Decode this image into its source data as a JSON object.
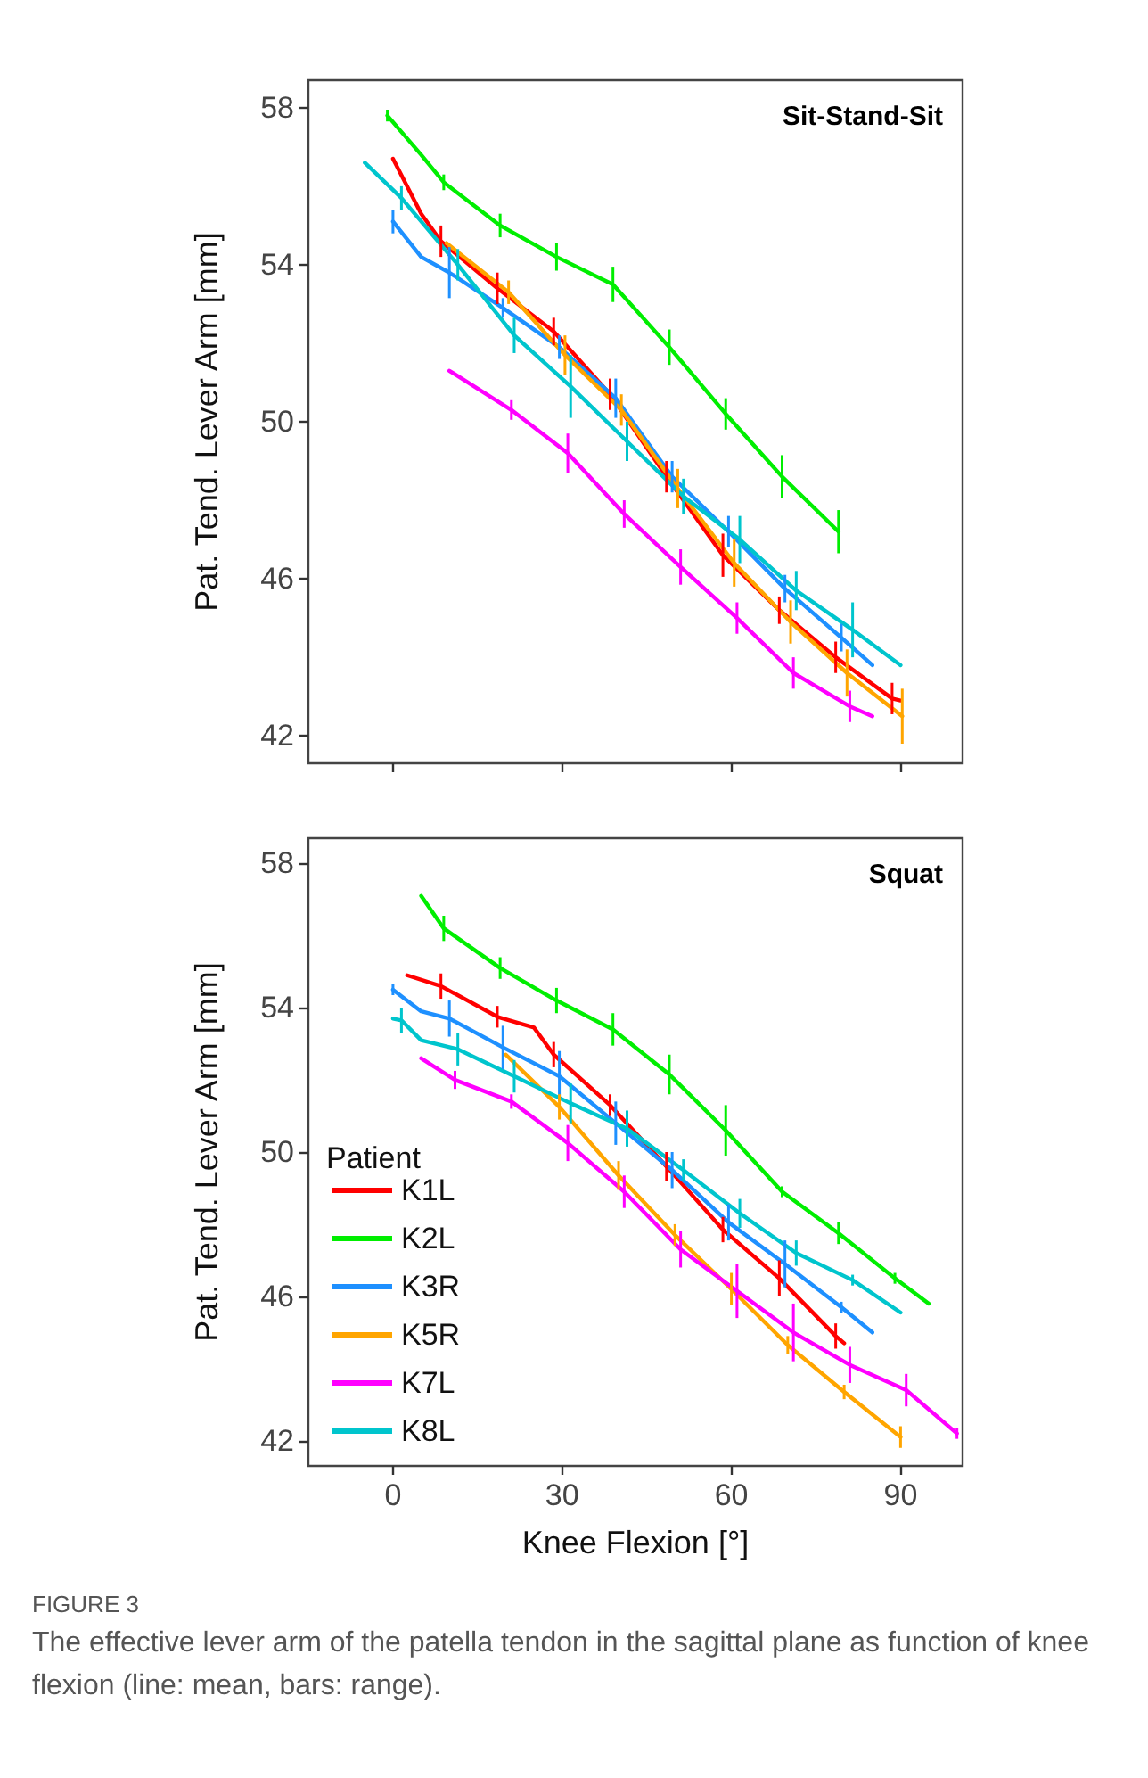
{
  "chart_data": [
    {
      "type": "line",
      "title": "Sit-Stand-Sit",
      "ylabel": "Pat. Tend. Lever Arm [mm]",
      "xlim": [
        -15,
        101
      ],
      "xticks": [
        0,
        30,
        60,
        90
      ],
      "ylim": [
        41.3,
        58.7
      ],
      "yticks": [
        42,
        46,
        50,
        54,
        58
      ],
      "tick_labels": "y",
      "grid": false,
      "legend": false,
      "marker": "none",
      "line_style": "solid",
      "series": [
        {
          "color": "#ff0000",
          "x": [
            0,
            5,
            8.5,
            18.5,
            28.5,
            38.5,
            48.5,
            58.5,
            68.5,
            78.5,
            88.5,
            90
          ],
          "values": [
            56.7,
            55.3,
            54.6,
            53.4,
            52.3,
            50.7,
            48.6,
            46.6,
            45.2,
            44.0,
            42.95,
            42.9
          ],
          "errors": [
            null,
            null,
            0.4,
            0.4,
            0.35,
            0.4,
            0.4,
            0.55,
            0.35,
            0.4,
            0.4,
            null
          ]
        },
        {
          "color": "#00ee00",
          "x": [
            -1,
            5,
            9,
            19,
            29,
            39,
            49,
            59,
            69,
            79
          ],
          "values": [
            57.8,
            56.8,
            56.1,
            55.0,
            54.2,
            53.5,
            51.9,
            50.2,
            48.6,
            47.2
          ],
          "errors": [
            0.15,
            null,
            0.2,
            0.3,
            0.35,
            0.45,
            0.45,
            0.4,
            0.55,
            0.55
          ]
        },
        {
          "color": "#1e90ff",
          "x": [
            0,
            5,
            10,
            19.5,
            29.5,
            39.5,
            49.5,
            59.5,
            69.5,
            79.5,
            85
          ],
          "values": [
            55.1,
            54.2,
            53.8,
            52.9,
            51.9,
            50.6,
            48.6,
            47.2,
            45.75,
            44.5,
            43.8
          ],
          "errors": [
            0.3,
            null,
            0.65,
            0.25,
            0.3,
            0.5,
            0.4,
            0.4,
            0.35,
            0.35,
            null
          ]
        },
        {
          "color": "#ffa500",
          "x": [
            9.5,
            20.5,
            30.5,
            40.5,
            50.5,
            60.5,
            70.5,
            80.5,
            90.3
          ],
          "values": [
            54.55,
            53.3,
            51.7,
            50.3,
            48.3,
            46.4,
            44.9,
            43.6,
            42.5
          ],
          "errors": [
            null,
            0.3,
            0.5,
            0.4,
            0.5,
            0.6,
            0.55,
            0.6,
            0.7
          ]
        },
        {
          "color": "#ff00ff",
          "x": [
            10,
            21,
            31,
            41,
            51,
            61,
            71,
            81,
            85
          ],
          "values": [
            51.3,
            50.3,
            49.2,
            47.65,
            46.3,
            45.0,
            43.6,
            42.75,
            42.5
          ],
          "errors": [
            null,
            0.25,
            0.5,
            0.35,
            0.45,
            0.4,
            0.4,
            0.4,
            null
          ]
        },
        {
          "color": "#00c5cd",
          "x": [
            -5,
            1.5,
            11.5,
            21.5,
            31.5,
            41.5,
            51.5,
            61.5,
            71.5,
            81.5,
            90
          ],
          "values": [
            56.6,
            55.7,
            54.0,
            52.2,
            50.9,
            49.5,
            48.1,
            47.0,
            45.7,
            44.7,
            43.8
          ],
          "errors": [
            null,
            0.3,
            0.4,
            0.45,
            0.8,
            0.5,
            0.45,
            0.6,
            0.5,
            0.7,
            null
          ]
        }
      ]
    },
    {
      "type": "line",
      "title": "Squat",
      "xlabel": "Knee Flexion [°]",
      "ylabel": "Pat. Tend. Lever Arm [mm]",
      "xlim": [
        -15,
        101
      ],
      "xticks": [
        0,
        30,
        60,
        90
      ],
      "ylim": [
        41.3,
        58.7
      ],
      "yticks": [
        42,
        46,
        50,
        54,
        58
      ],
      "grid": false,
      "legend": "bottom left",
      "legend_title": "Patient",
      "marker": "none",
      "line_style": "solid",
      "annotations": [
        "FIGURE 3",
        "The effective lever arm of the patella tendon in the sagittal plane as function of knee flexion (line: mean, bars: range)."
      ],
      "series": [
        {
          "name": "K1L",
          "color": "#ff0000",
          "x": [
            2.5,
            8.5,
            18.5,
            25,
            28.5,
            38.5,
            48.5,
            58.5,
            68.5,
            78.5,
            80
          ],
          "values": [
            54.9,
            54.6,
            53.75,
            53.45,
            52.7,
            51.3,
            49.6,
            47.85,
            46.5,
            44.9,
            44.7
          ],
          "errors": [
            null,
            0.35,
            0.3,
            null,
            0.35,
            0.3,
            0.4,
            0.35,
            0.5,
            0.35,
            null
          ]
        },
        {
          "name": "K2L",
          "color": "#00ee00",
          "x": [
            5,
            9,
            19,
            29,
            39,
            49,
            59,
            69,
            79,
            89,
            95
          ],
          "values": [
            57.1,
            56.2,
            55.1,
            54.2,
            53.4,
            52.15,
            50.6,
            48.9,
            47.75,
            46.5,
            45.8
          ],
          "errors": [
            null,
            0.35,
            0.3,
            0.35,
            0.45,
            0.55,
            0.7,
            0.15,
            0.3,
            0.15,
            null
          ]
        },
        {
          "name": "K3R",
          "color": "#1e90ff",
          "x": [
            0,
            5,
            10,
            19.5,
            29.5,
            39.5,
            49.5,
            59.5,
            69.5,
            79.5,
            85
          ],
          "values": [
            54.5,
            53.9,
            53.7,
            52.9,
            52.1,
            50.8,
            49.5,
            48.05,
            46.9,
            45.7,
            45.0
          ],
          "errors": [
            0.15,
            null,
            0.5,
            0.6,
            0.7,
            0.6,
            0.5,
            0.5,
            0.65,
            0.15,
            null
          ]
        },
        {
          "name": "K5R",
          "color": "#ffa500",
          "x": [
            20,
            29.5,
            40,
            50,
            60,
            70,
            80,
            90
          ],
          "values": [
            52.7,
            51.25,
            49.35,
            47.7,
            46.2,
            44.65,
            43.35,
            42.1
          ],
          "errors": [
            null,
            0.35,
            0.4,
            0.3,
            0.45,
            0.25,
            0.2,
            0.3
          ]
        },
        {
          "name": "K7L",
          "color": "#ff00ff",
          "x": [
            5,
            11,
            21,
            31,
            41,
            51,
            61,
            71,
            81,
            91,
            100
          ],
          "values": [
            52.6,
            52.0,
            51.4,
            50.25,
            48.9,
            47.3,
            46.15,
            45.0,
            44.1,
            43.4,
            42.2
          ],
          "errors": [
            null,
            0.25,
            0.2,
            0.5,
            0.45,
            0.5,
            0.75,
            0.8,
            0.5,
            0.45,
            0.15
          ]
        },
        {
          "name": "K8L",
          "color": "#00c5cd",
          "x": [
            0,
            1.5,
            5,
            11.5,
            21.5,
            31.5,
            41.5,
            51.5,
            61.5,
            71.5,
            81.5,
            90
          ],
          "values": [
            53.7,
            53.65,
            53.1,
            52.85,
            52.1,
            51.35,
            50.65,
            49.5,
            48.3,
            47.2,
            46.45,
            45.55
          ],
          "errors": [
            null,
            0.35,
            null,
            0.45,
            0.45,
            0.55,
            0.5,
            0.3,
            0.4,
            0.35,
            0.15,
            null
          ]
        }
      ]
    }
  ]
}
